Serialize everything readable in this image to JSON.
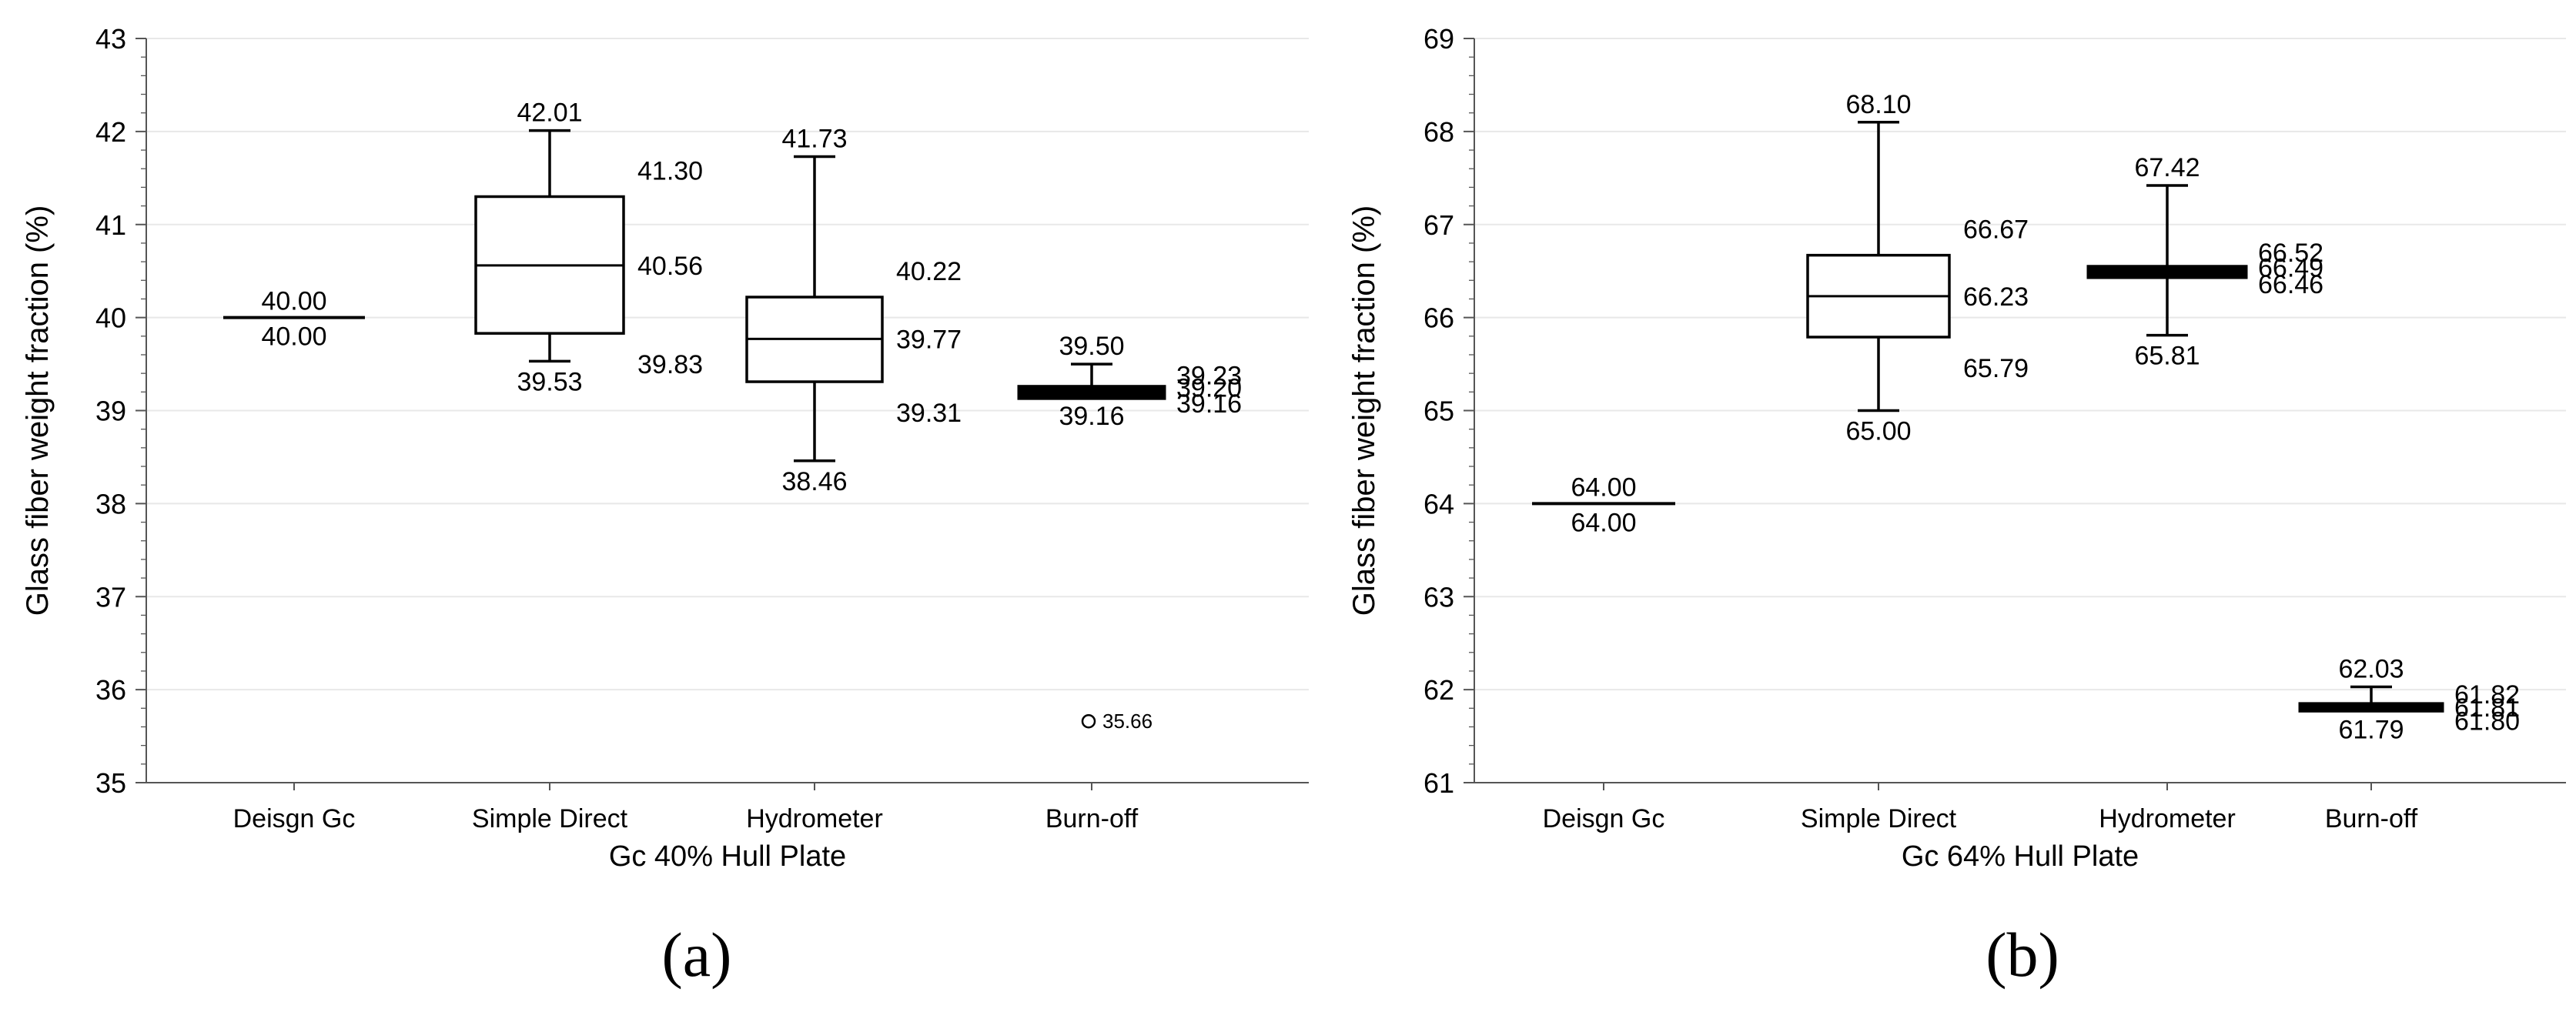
{
  "chart_data": [
    {
      "type": "boxplot",
      "panel_label": "(a)",
      "xlabel": "Gc 40% Hull Plate",
      "ylabel": "Glass fiber weight fraction (%)",
      "ylim": [
        35,
        43
      ],
      "yticks": [
        "35",
        "36",
        "37",
        "38",
        "39",
        "40",
        "41",
        "42",
        "43"
      ],
      "grid": true,
      "categories": [
        "Deisgn Gc",
        "Simple Direct",
        "Hydrometer",
        "Burn-off"
      ],
      "boxes": [
        {
          "category": "Deisgn Gc",
          "min": 40.0,
          "q1": 40.0,
          "median": 40.0,
          "q3": 40.0,
          "max": 40.0,
          "labels": {
            "max": "40.00",
            "min": "40.00"
          }
        },
        {
          "category": "Simple Direct",
          "min": 39.53,
          "q1": 39.83,
          "median": 40.56,
          "q3": 41.3,
          "max": 42.01,
          "labels": {
            "max": "42.01",
            "q3": "41.30",
            "median": "40.56",
            "q1": "39.83",
            "min": "39.53"
          }
        },
        {
          "category": "Hydrometer",
          "min": 38.46,
          "q1": 39.31,
          "median": 39.77,
          "q3": 40.22,
          "max": 41.73,
          "labels": {
            "max": "41.73",
            "q3": "40.22",
            "median": "39.77",
            "q1": "39.31",
            "min": "38.46"
          }
        },
        {
          "category": "Burn-off",
          "min": 39.16,
          "q1": 39.16,
          "median": 39.2,
          "q3": 39.23,
          "max": 39.5,
          "labels": {
            "max": "39.50",
            "q3": "39.23",
            "median": "39.20",
            "q1": "39.16",
            "min": "39.16"
          },
          "outliers": [
            {
              "value": 35.66,
              "label": "35.66"
            }
          ]
        }
      ]
    },
    {
      "type": "boxplot",
      "panel_label": "(b)",
      "xlabel": "Gc 64% Hull Plate",
      "ylabel": "Glass fiber weight fraction (%)",
      "ylim": [
        61,
        69
      ],
      "yticks": [
        "61",
        "62",
        "63",
        "64",
        "65",
        "66",
        "67",
        "68",
        "69"
      ],
      "grid": true,
      "categories": [
        "Deisgn Gc",
        "Simple Direct",
        "Hydrometer",
        "Burn-off"
      ],
      "boxes": [
        {
          "category": "Deisgn Gc",
          "min": 64.0,
          "q1": 64.0,
          "median": 64.0,
          "q3": 64.0,
          "max": 64.0,
          "labels": {
            "max": "64.00",
            "min": "64.00"
          }
        },
        {
          "category": "Simple Direct",
          "min": 65.0,
          "q1": 65.79,
          "median": 66.23,
          "q3": 66.67,
          "max": 68.1,
          "labels": {
            "max": "68.10",
            "q3": "66.67",
            "median": "66.23",
            "q1": "65.79",
            "min": "65.00"
          }
        },
        {
          "category": "Hydrometer",
          "min": 65.81,
          "q1": 66.46,
          "median": 66.49,
          "q3": 66.52,
          "max": 67.42,
          "labels": {
            "max": "67.42",
            "q3": "66.52",
            "median": "66.49",
            "q1": "66.46",
            "min": "65.81"
          }
        },
        {
          "category": "Burn-off",
          "min": 61.79,
          "q1": 61.8,
          "median": 61.81,
          "q3": 61.82,
          "max": 62.03,
          "labels": {
            "max": "62.03",
            "q3": "61.82",
            "median": "61.81",
            "q1": "61.80",
            "min": "61.79"
          }
        }
      ]
    }
  ]
}
